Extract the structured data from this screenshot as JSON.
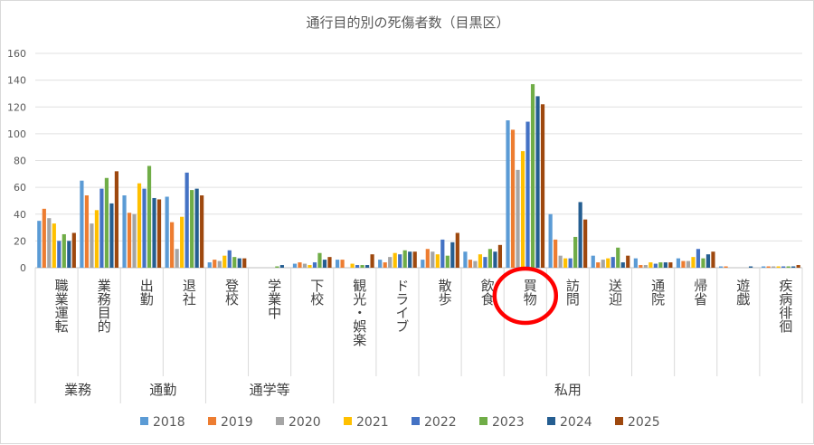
{
  "chart_data": {
    "type": "bar",
    "title": "通行目的別の死傷者数（目黒区）",
    "ylim": [
      0,
      160
    ],
    "yticks": [
      0,
      20,
      40,
      60,
      80,
      100,
      120,
      140,
      160
    ],
    "grid": "horizontal",
    "legend_position": "bottom",
    "categories": [
      "職業運転",
      "業務目的",
      "出勤",
      "退社",
      "登校",
      "学業中",
      "下校",
      "観光・娯楽",
      "ドライブ",
      "散歩",
      "飲食",
      "買物",
      "訪問",
      "送迎",
      "通院",
      "帰省",
      "遊戯",
      "疾病徘徊"
    ],
    "groups": [
      {
        "label": "業務",
        "categories": [
          "職業運転",
          "業務目的"
        ]
      },
      {
        "label": "通勤",
        "categories": [
          "出勤",
          "退社"
        ]
      },
      {
        "label": "通学等",
        "categories": [
          "登校",
          "学業中",
          "下校"
        ]
      },
      {
        "label": "私用",
        "categories": [
          "観光・娯楽",
          "ドライブ",
          "散歩",
          "飲食",
          "買物",
          "訪問",
          "送迎",
          "通院",
          "帰省",
          "遊戯",
          "疾病徘徊"
        ]
      }
    ],
    "highlight": {
      "category": "買物",
      "style": "red-ellipse",
      "color": "#ff0000"
    },
    "series": [
      {
        "name": "2018",
        "color": "#5b9bd5",
        "values": [
          35,
          65,
          54,
          53,
          4,
          0,
          3,
          6,
          6,
          6,
          12,
          110,
          40,
          9,
          7,
          7,
          1,
          1
        ]
      },
      {
        "name": "2019",
        "color": "#ed7d31",
        "values": [
          44,
          54,
          41,
          34,
          6,
          0,
          4,
          6,
          4,
          14,
          6,
          103,
          21,
          4,
          2,
          5,
          1,
          1
        ]
      },
      {
        "name": "2020",
        "color": "#a5a5a5",
        "values": [
          37,
          33,
          40,
          14,
          5,
          0,
          3,
          0,
          8,
          12,
          5,
          73,
          9,
          6,
          2,
          5,
          0,
          1
        ]
      },
      {
        "name": "2021",
        "color": "#ffc000",
        "values": [
          33,
          43,
          63,
          38,
          9,
          0,
          2,
          3,
          11,
          10,
          10,
          87,
          7,
          7,
          4,
          8,
          0,
          1
        ]
      },
      {
        "name": "2022",
        "color": "#4472c4",
        "values": [
          20,
          59,
          59,
          71,
          13,
          0,
          4,
          2,
          10,
          21,
          8,
          109,
          7,
          8,
          3,
          14,
          0,
          1
        ]
      },
      {
        "name": "2023",
        "color": "#70ad47",
        "values": [
          25,
          67,
          76,
          58,
          8,
          1,
          11,
          2,
          13,
          9,
          14,
          137,
          23,
          15,
          4,
          7,
          0,
          1
        ]
      },
      {
        "name": "2024",
        "color": "#255e91",
        "values": [
          20,
          48,
          52,
          59,
          7,
          2,
          6,
          2,
          12,
          19,
          12,
          128,
          49,
          4,
          4,
          10,
          1,
          1
        ]
      },
      {
        "name": "2025",
        "color": "#9e480e",
        "values": [
          26,
          72,
          51,
          54,
          7,
          0,
          8,
          10,
          12,
          26,
          17,
          122,
          36,
          9,
          4,
          12,
          0,
          2
        ]
      }
    ]
  }
}
